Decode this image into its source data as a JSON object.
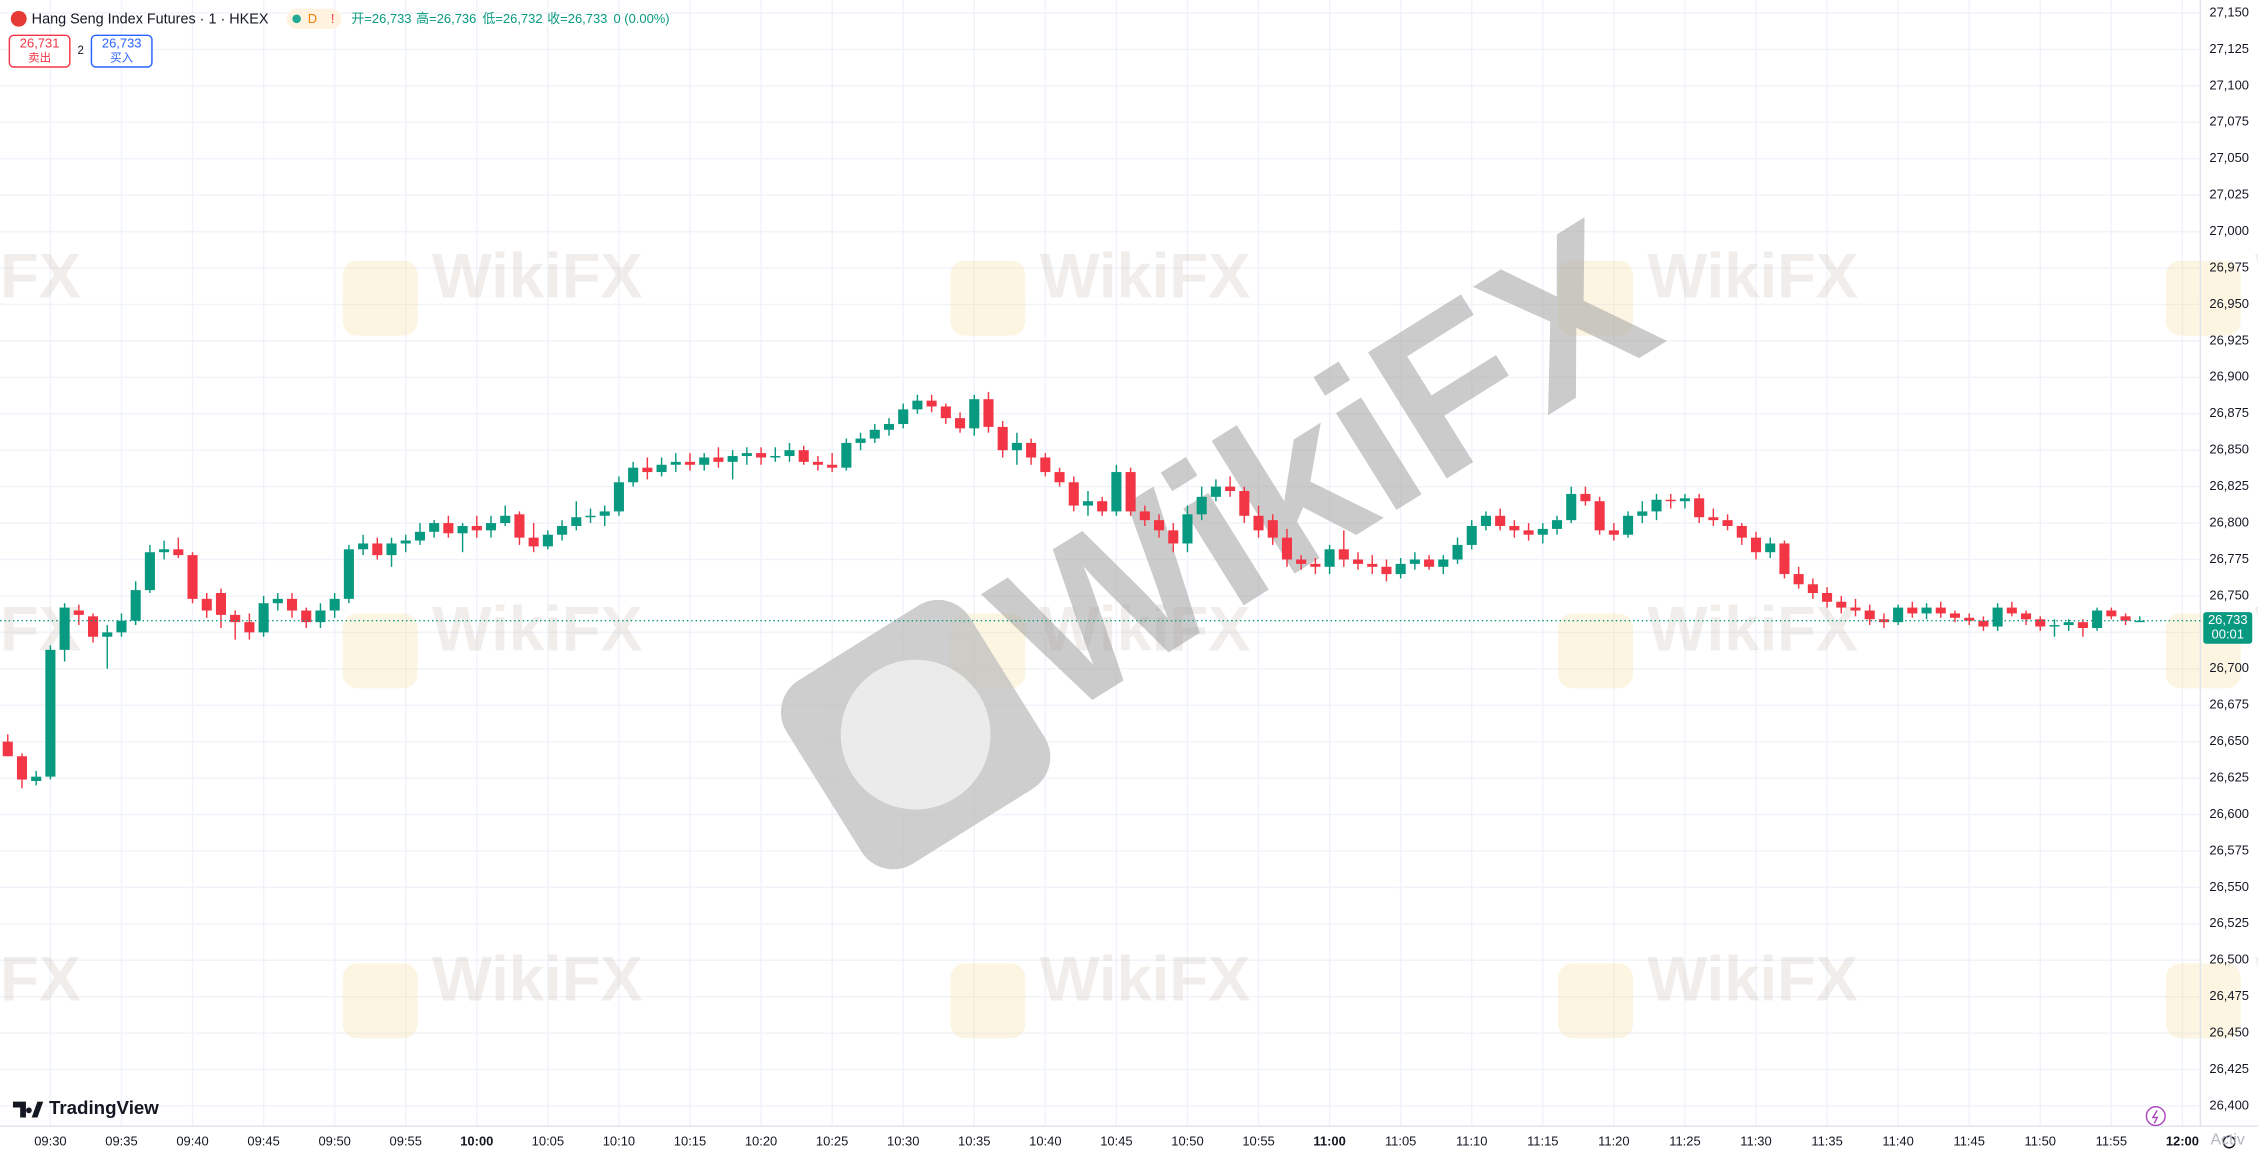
{
  "chart_data": {
    "type": "candlestick",
    "title": "Hang Seng Index Futures · 1 · HKEX",
    "badges": [
      "D",
      "!"
    ],
    "ohlc_labels": [
      "开=26,733",
      "高=26,736",
      "低=26,732",
      "收=26,733"
    ],
    "change": "0 (0.00%)",
    "sell": {
      "price": "26,731",
      "label": "卖出"
    },
    "spread": "2",
    "buy": {
      "price": "26,733",
      "label": "买入"
    },
    "logo": "TradingView",
    "watermark": "WikiFX",
    "corner_text": "Activ",
    "up_color": "#089981",
    "down_color": "#f23645",
    "grid": true,
    "ylim": [
      26400,
      27150
    ],
    "yticks": [
      {
        "value": 26400,
        "label": "26,400"
      },
      {
        "value": 26425,
        "label": "26,425"
      },
      {
        "value": 26450,
        "label": "26,450"
      },
      {
        "value": 26475,
        "label": "26,475"
      },
      {
        "value": 26500,
        "label": "26,500"
      },
      {
        "value": 26525,
        "label": "26,525"
      },
      {
        "value": 26550,
        "label": "26,550"
      },
      {
        "value": 26575,
        "label": "26,575"
      },
      {
        "value": 26600,
        "label": "26,600"
      },
      {
        "value": 26625,
        "label": "26,625"
      },
      {
        "value": 26650,
        "label": "26,650"
      },
      {
        "value": 26675,
        "label": "26,675"
      },
      {
        "value": 26700,
        "label": "26,700"
      },
      {
        "value": 26725,
        "label": "26,725"
      },
      {
        "value": 26750,
        "label": "26,750"
      },
      {
        "value": 26775,
        "label": "26,775"
      },
      {
        "value": 26800,
        "label": "26,800"
      },
      {
        "value": 26825,
        "label": "26,825"
      },
      {
        "value": 26850,
        "label": "26,850"
      },
      {
        "value": 26875,
        "label": "26,875"
      },
      {
        "value": 26900,
        "label": "26,900"
      },
      {
        "value": 26925,
        "label": "26,925"
      },
      {
        "value": 26950,
        "label": "26,950"
      },
      {
        "value": 26975,
        "label": "26,975"
      },
      {
        "value": 27000,
        "label": "27,000"
      },
      {
        "value": 27025,
        "label": "27,025"
      },
      {
        "value": 27050,
        "label": "27,050"
      },
      {
        "value": 27075,
        "label": "27,075"
      },
      {
        "value": 27100,
        "label": "27,100"
      },
      {
        "value": 27125,
        "label": "27,125"
      },
      {
        "value": 27150,
        "label": "27,150"
      }
    ],
    "last_price": {
      "value": 26733,
      "label": "26,733"
    },
    "countdown": "00:01",
    "categories": [
      null,
      null,
      null,
      "09:30",
      null,
      null,
      null,
      null,
      "09:35",
      null,
      null,
      null,
      null,
      "09:40",
      null,
      null,
      null,
      null,
      "09:45",
      null,
      null,
      null,
      null,
      "09:50",
      null,
      null,
      null,
      null,
      "09:55",
      null,
      null,
      null,
      null,
      "10:00",
      null,
      null,
      null,
      null,
      "10:05",
      null,
      null,
      null,
      null,
      "10:10",
      null,
      null,
      null,
      null,
      "10:15",
      null,
      null,
      null,
      null,
      "10:20",
      null,
      null,
      null,
      null,
      "10:25",
      null,
      null,
      null,
      null,
      "10:30",
      null,
      null,
      null,
      null,
      "10:35",
      null,
      null,
      null,
      null,
      "10:40",
      null,
      null,
      null,
      null,
      "10:45",
      null,
      null,
      null,
      null,
      "10:50",
      null,
      null,
      null,
      null,
      "10:55",
      null,
      null,
      null,
      null,
      "11:00",
      null,
      null,
      null,
      null,
      "11:05",
      null,
      null,
      null,
      null,
      "11:10",
      null,
      null,
      null,
      null,
      "11:15",
      null,
      null,
      null,
      null,
      "11:20",
      null,
      null,
      null,
      null,
      "11:25",
      null,
      null,
      null,
      null,
      "11:30",
      null,
      null,
      null,
      null,
      "11:35",
      null,
      null,
      null,
      null,
      "11:40",
      null,
      null,
      null,
      null,
      "11:45",
      null,
      null,
      null,
      null,
      "11:50",
      null,
      null,
      null,
      null,
      "11:55",
      null,
      null,
      null,
      null,
      "12:00"
    ],
    "candles": [
      [
        26650,
        26655,
        26640,
        26640
      ],
      [
        26640,
        26642,
        26618,
        26624
      ],
      [
        26623,
        26630,
        26620,
        26626
      ],
      [
        26626,
        26716,
        26624,
        26713
      ],
      [
        26713,
        26745,
        26705,
        26742
      ],
      [
        26740,
        26744,
        26730,
        26737
      ],
      [
        26736,
        26738,
        26718,
        26722
      ],
      [
        26722,
        26730,
        26700,
        26725
      ],
      [
        26725,
        26738,
        26722,
        26733
      ],
      [
        26733,
        26760,
        26730,
        26754
      ],
      [
        26754,
        26785,
        26752,
        26780
      ],
      [
        26780,
        26788,
        26775,
        26782
      ],
      [
        26782,
        26790,
        26776,
        26778
      ],
      [
        26778,
        26780,
        26745,
        26748
      ],
      [
        26748,
        26752,
        26735,
        26740
      ],
      [
        26752,
        26755,
        26728,
        26737
      ],
      [
        26737,
        26740,
        26720,
        26732
      ],
      [
        26732,
        26738,
        26720,
        26725
      ],
      [
        26725,
        26750,
        26722,
        26745
      ],
      [
        26745,
        26752,
        26740,
        26748
      ],
      [
        26748,
        26752,
        26735,
        26740
      ],
      [
        26740,
        26742,
        26728,
        26732
      ],
      [
        26732,
        26745,
        26728,
        26740
      ],
      [
        26740,
        26752,
        26735,
        26748
      ],
      [
        26748,
        26785,
        26745,
        26782
      ],
      [
        26782,
        26792,
        26778,
        26786
      ],
      [
        26786,
        26790,
        26775,
        26778
      ],
      [
        26778,
        26790,
        26770,
        26786
      ],
      [
        26786,
        26792,
        26780,
        26788
      ],
      [
        26788,
        26800,
        26785,
        26794
      ],
      [
        26794,
        26802,
        26790,
        26800
      ],
      [
        26800,
        26805,
        26790,
        26793
      ],
      [
        26793,
        26800,
        26780,
        26798
      ],
      [
        26798,
        26805,
        26790,
        26795
      ],
      [
        26795,
        26805,
        26790,
        26800
      ],
      [
        26800,
        26812,
        26798,
        26805
      ],
      [
        26806,
        26808,
        26785,
        26790
      ],
      [
        26790,
        26800,
        26780,
        26784
      ],
      [
        26784,
        26795,
        26782,
        26792
      ],
      [
        26792,
        26802,
        26788,
        26798
      ],
      [
        26798,
        26815,
        26795,
        26804
      ],
      [
        26804,
        26810,
        26800,
        26805
      ],
      [
        26805,
        26812,
        26798,
        26808
      ],
      [
        26808,
        26832,
        26805,
        26828
      ],
      [
        26828,
        26842,
        26825,
        26838
      ],
      [
        26838,
        26845,
        26830,
        26835
      ],
      [
        26835,
        26845,
        26832,
        26840
      ],
      [
        26840,
        26848,
        26835,
        26842
      ],
      [
        26842,
        26848,
        26836,
        26840
      ],
      [
        26840,
        26848,
        26836,
        26845
      ],
      [
        26845,
        26852,
        26838,
        26842
      ],
      [
        26842,
        26850,
        26830,
        26846
      ],
      [
        26846,
        26852,
        26840,
        26848
      ],
      [
        26848,
        26852,
        26840,
        26845
      ],
      [
        26845,
        26852,
        26842,
        26846
      ],
      [
        26846,
        26855,
        26842,
        26850
      ],
      [
        26850,
        26853,
        26840,
        26842
      ],
      [
        26842,
        26846,
        26836,
        26840
      ],
      [
        26840,
        26848,
        26835,
        26838
      ],
      [
        26838,
        26858,
        26836,
        26855
      ],
      [
        26855,
        26862,
        26850,
        26858
      ],
      [
        26858,
        26868,
        26855,
        26864
      ],
      [
        26864,
        26872,
        26860,
        26868
      ],
      [
        26868,
        26882,
        26865,
        26878
      ],
      [
        26878,
        26888,
        26875,
        26884
      ],
      [
        26884,
        26888,
        26876,
        26880
      ],
      [
        26880,
        26882,
        26868,
        26872
      ],
      [
        26872,
        26876,
        26862,
        26865
      ],
      [
        26865,
        26888,
        26860,
        26885
      ],
      [
        26885,
        26890,
        26862,
        26866
      ],
      [
        26866,
        26870,
        26845,
        26850
      ],
      [
        26850,
        26862,
        26840,
        26855
      ],
      [
        26855,
        26858,
        26840,
        26845
      ],
      [
        26845,
        26848,
        26832,
        26835
      ],
      [
        26835,
        26838,
        26825,
        26828
      ],
      [
        26828,
        26832,
        26808,
        26812
      ],
      [
        26812,
        26822,
        26805,
        26815
      ],
      [
        26815,
        26818,
        26805,
        26808
      ],
      [
        26808,
        26840,
        26805,
        26835
      ],
      [
        26835,
        26838,
        26805,
        26808
      ],
      [
        26808,
        26812,
        26798,
        26802
      ],
      [
        26802,
        26806,
        26790,
        26795
      ],
      [
        26795,
        26800,
        26780,
        26786
      ],
      [
        26786,
        26812,
        26780,
        26806
      ],
      [
        26806,
        26825,
        26802,
        26818
      ],
      [
        26818,
        26830,
        26815,
        26825
      ],
      [
        26825,
        26832,
        26818,
        26822
      ],
      [
        26822,
        26825,
        26800,
        26805
      ],
      [
        26805,
        26812,
        26790,
        26795
      ],
      [
        26802,
        26806,
        26785,
        26790
      ],
      [
        26790,
        26796,
        26770,
        26775
      ],
      [
        26775,
        26778,
        26768,
        26772
      ],
      [
        26772,
        26776,
        26765,
        26770
      ],
      [
        26770,
        26785,
        26765,
        26782
      ],
      [
        26782,
        26795,
        26770,
        26775
      ],
      [
        26775,
        26780,
        26768,
        26772
      ],
      [
        26772,
        26778,
        26765,
        26770
      ],
      [
        26770,
        26775,
        26760,
        26765
      ],
      [
        26765,
        26776,
        26762,
        26772
      ],
      [
        26772,
        26780,
        26768,
        26775
      ],
      [
        26775,
        26778,
        26768,
        26770
      ],
      [
        26770,
        26778,
        26765,
        26775
      ],
      [
        26775,
        26790,
        26772,
        26785
      ],
      [
        26785,
        26802,
        26782,
        26798
      ],
      [
        26798,
        26808,
        26795,
        26805
      ],
      [
        26805,
        26810,
        26795,
        26798
      ],
      [
        26798,
        26802,
        26790,
        26795
      ],
      [
        26795,
        26800,
        26788,
        26792
      ],
      [
        26792,
        26800,
        26786,
        26796
      ],
      [
        26796,
        26805,
        26792,
        26802
      ],
      [
        26802,
        26825,
        26800,
        26820
      ],
      [
        26820,
        26825,
        26812,
        26815
      ],
      [
        26815,
        26818,
        26792,
        26795
      ],
      [
        26795,
        26800,
        26788,
        26792
      ],
      [
        26792,
        26808,
        26790,
        26805
      ],
      [
        26805,
        26815,
        26800,
        26808
      ],
      [
        26808,
        26820,
        26802,
        26816
      ],
      [
        26816,
        26820,
        26810,
        26815
      ],
      [
        26815,
        26820,
        26810,
        26817
      ],
      [
        26817,
        26820,
        26800,
        26804
      ],
      [
        26804,
        26810,
        26798,
        26802
      ],
      [
        26802,
        26806,
        26795,
        26798
      ],
      [
        26798,
        26800,
        26785,
        26790
      ],
      [
        26790,
        26794,
        26775,
        26780
      ],
      [
        26780,
        26790,
        26776,
        26786
      ],
      [
        26786,
        26788,
        26762,
        26765
      ],
      [
        26765,
        26770,
        26755,
        26758
      ],
      [
        26758,
        26762,
        26748,
        26752
      ],
      [
        26752,
        26756,
        26742,
        26746
      ],
      [
        26746,
        26750,
        26738,
        26742
      ],
      [
        26742,
        26748,
        26736,
        26740
      ],
      [
        26740,
        26744,
        26730,
        26734
      ],
      [
        26734,
        26738,
        26728,
        26732
      ],
      [
        26732,
        26744,
        26730,
        26742
      ],
      [
        26742,
        26746,
        26735,
        26738
      ],
      [
        26738,
        26745,
        26734,
        26742
      ],
      [
        26742,
        26746,
        26735,
        26738
      ],
      [
        26738,
        26740,
        26732,
        26735
      ],
      [
        26735,
        26738,
        26730,
        26733
      ],
      [
        26733,
        26736,
        26726,
        26729
      ],
      [
        26729,
        26745,
        26726,
        26742
      ],
      [
        26742,
        26746,
        26736,
        26738
      ],
      [
        26738,
        26740,
        26730,
        26734
      ],
      [
        26734,
        26736,
        26726,
        26729
      ],
      [
        26729,
        26734,
        26722,
        26730
      ],
      [
        26730,
        26734,
        26726,
        26732
      ],
      [
        26732,
        26734,
        26722,
        26728
      ],
      [
        26728,
        26742,
        26726,
        26740
      ],
      [
        26740,
        26742,
        26734,
        26736
      ],
      [
        26736,
        26738,
        26730,
        26733
      ],
      [
        26733,
        26736,
        26732,
        26733
      ],
      null,
      null,
      null
    ]
  }
}
